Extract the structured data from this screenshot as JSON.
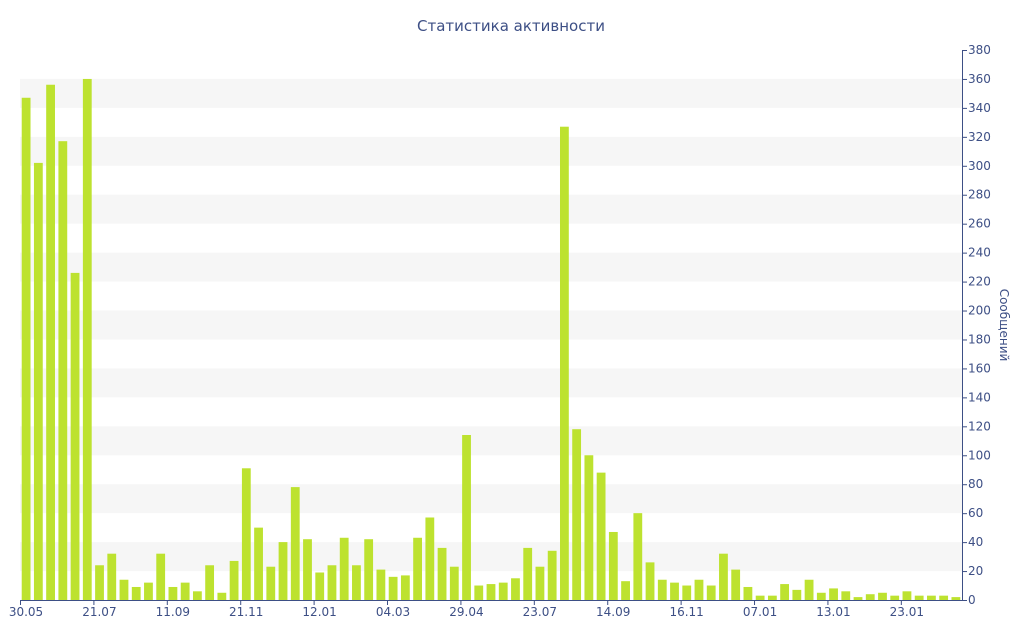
{
  "chart_data": {
    "type": "bar",
    "title": "Статистика активности",
    "ylabel": "Сообщений",
    "xlabel": "",
    "ylim": [
      0,
      380
    ],
    "ytick_step": 20,
    "y_axis_side": "right",
    "grid": "alternating horizontal bands",
    "bar_color": "#bde22f",
    "axis_color": "#3d4f85",
    "x_tick_labels": [
      "30.05",
      "21.07",
      "11.09",
      "21.11",
      "12.01",
      "04.03",
      "29.04",
      "23.07",
      "14.09",
      "16.11",
      "07.01",
      "13.01",
      "23.01"
    ],
    "x_tick_positions": [
      0,
      6,
      12,
      18,
      24,
      30,
      36,
      42,
      48,
      54,
      60,
      66,
      72
    ],
    "values": [
      347,
      302,
      356,
      317,
      226,
      360,
      24,
      32,
      14,
      9,
      12,
      32,
      9,
      12,
      6,
      24,
      5,
      27,
      91,
      50,
      23,
      40,
      78,
      42,
      19,
      24,
      43,
      24,
      42,
      21,
      16,
      17,
      43,
      57,
      36,
      23,
      114,
      10,
      11,
      12,
      15,
      36,
      23,
      34,
      327,
      118,
      100,
      88,
      47,
      13,
      60,
      26,
      14,
      12,
      10,
      14,
      10,
      32,
      21,
      9,
      3,
      3,
      11,
      7,
      14,
      5,
      8,
      6,
      2,
      4,
      5,
      3,
      6,
      3,
      3,
      3,
      2
    ]
  }
}
